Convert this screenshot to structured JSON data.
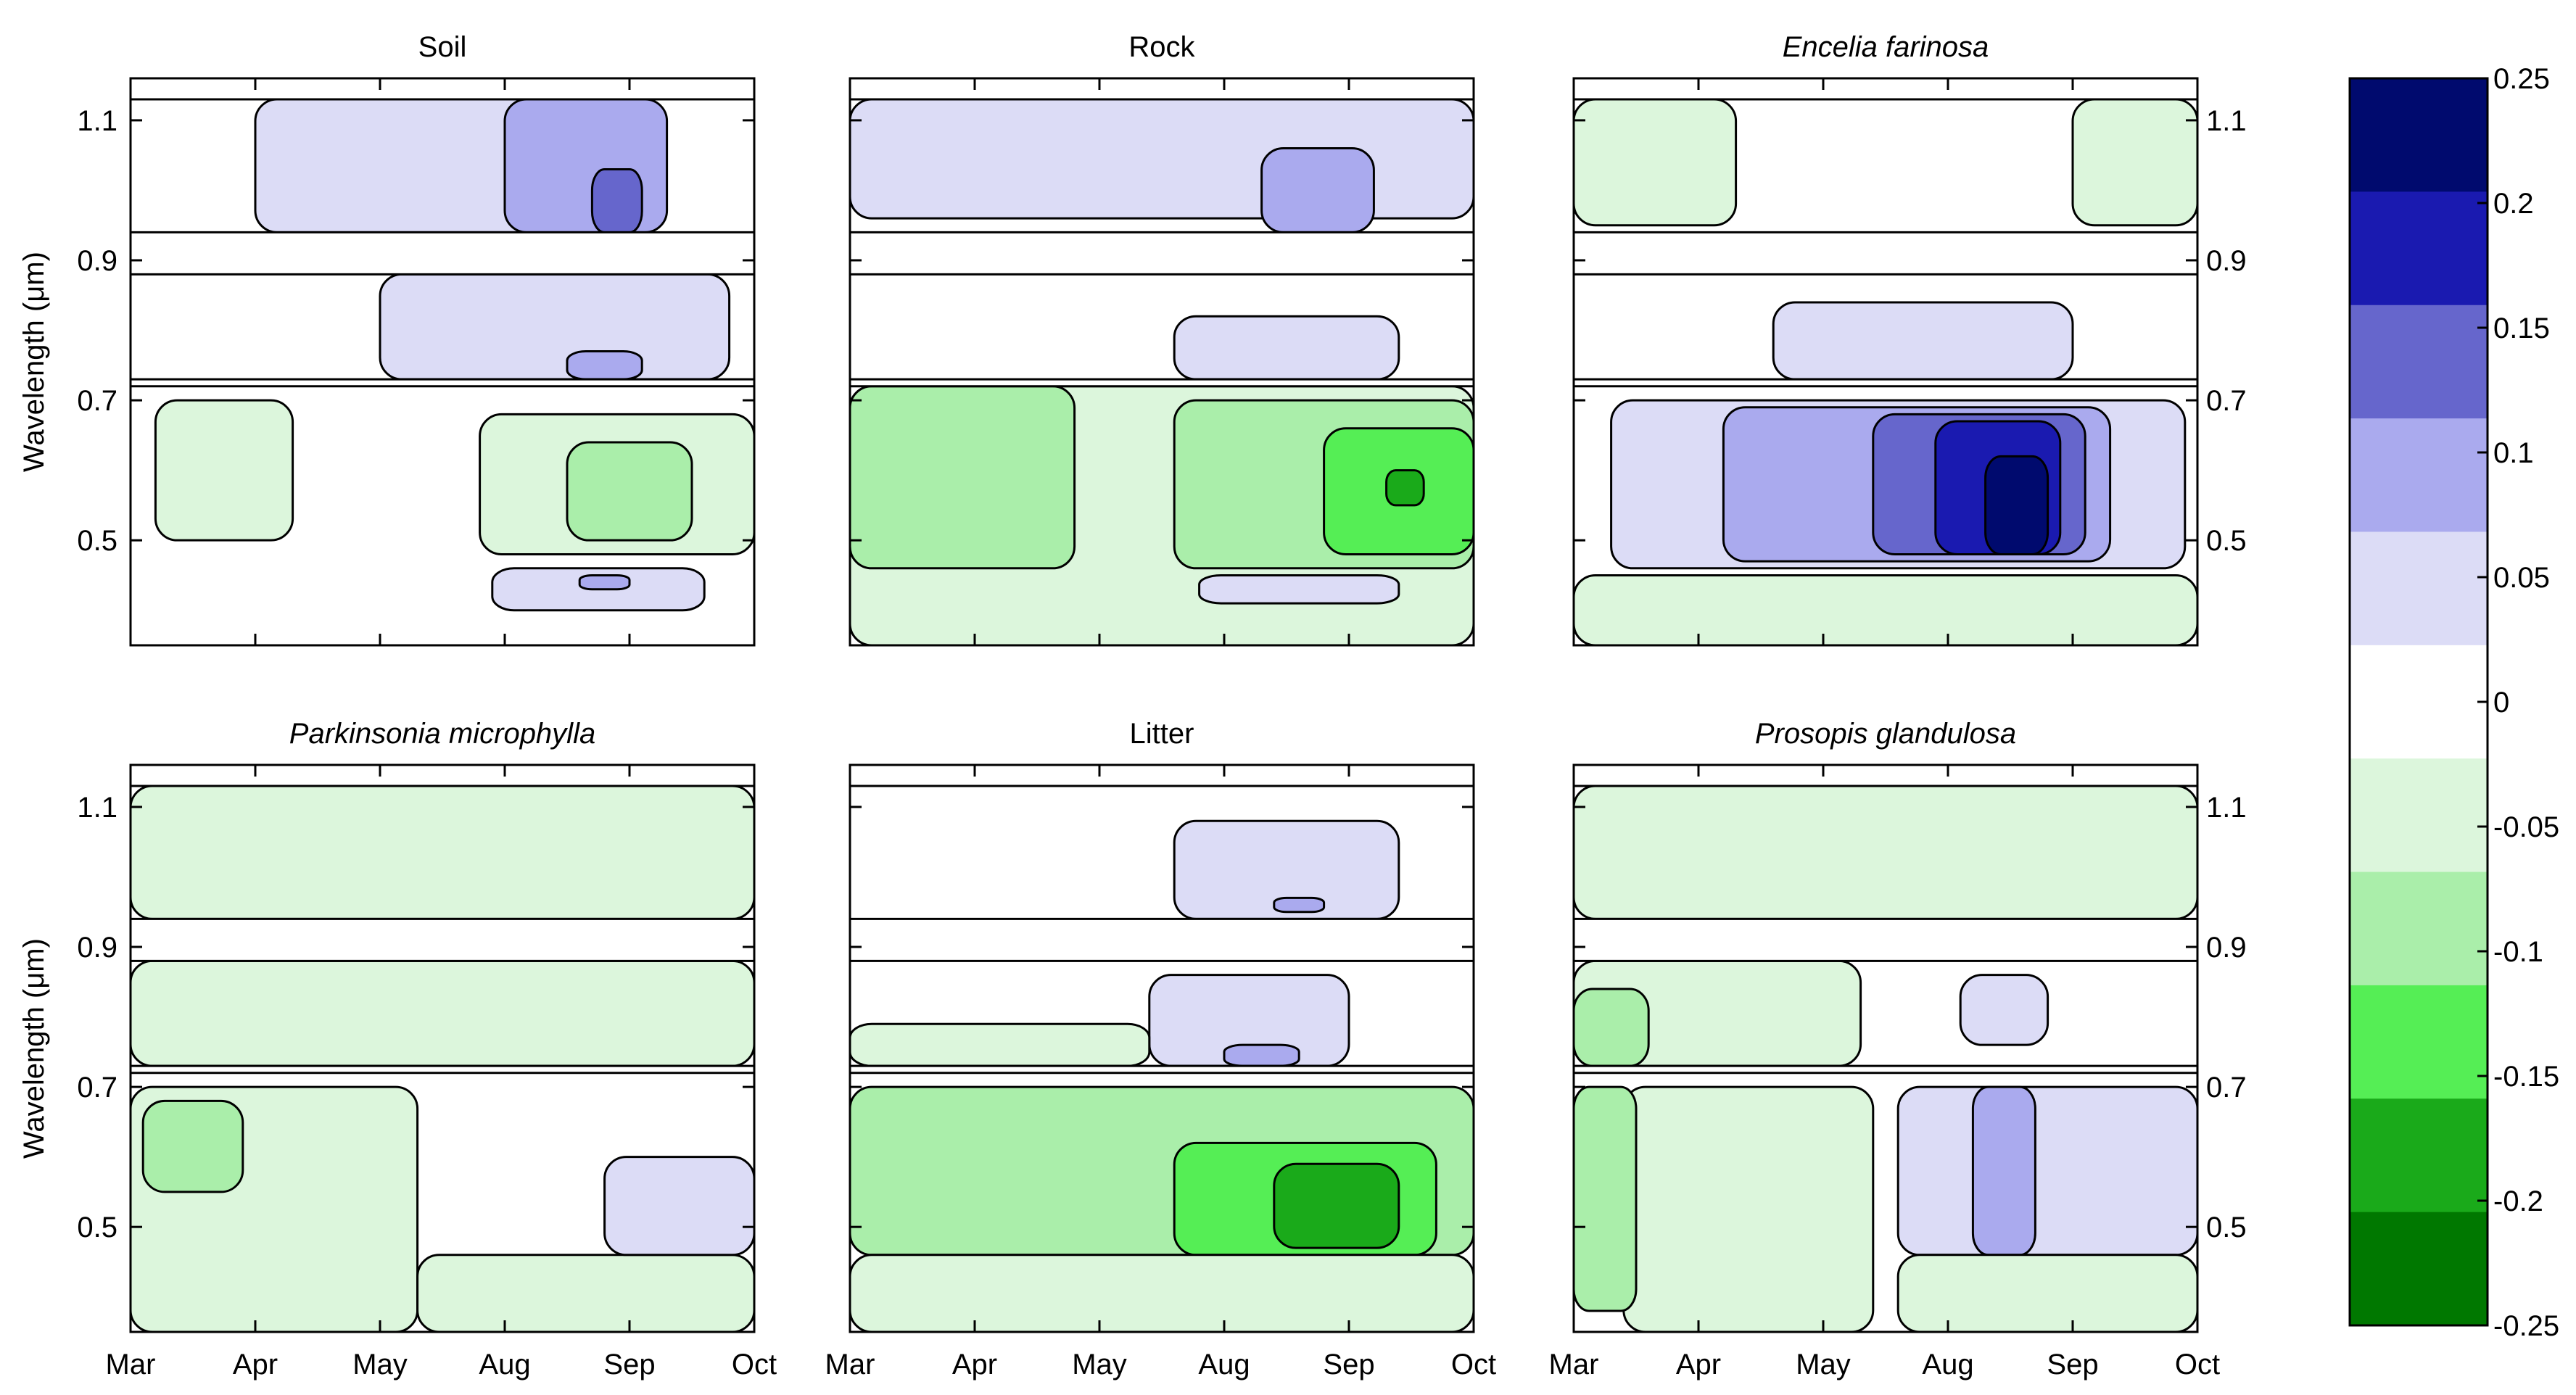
{
  "chart_data": {
    "type": "heatmap",
    "figure": "Seasonal change in reflectance by wavelength for six surface types",
    "ylabel": "Wavelength (μm)",
    "x_tick_labels": [
      "Mar",
      "Apr",
      "May",
      "Aug",
      "Sep",
      "Oct"
    ],
    "y_ticks": [
      0.5,
      0.7,
      0.9,
      1.1
    ],
    "y_tick_labels": [
      "0.5",
      "0.7",
      "0.9",
      "1.1"
    ],
    "ylim": [
      0.35,
      1.16
    ],
    "gaps_um": [
      [
        0.88,
        0.94
      ],
      [
        0.72,
        0.73
      ]
    ],
    "colorbar": {
      "levels": [
        0.25,
        0.2,
        0.15,
        0.1,
        0.05,
        0,
        -0.05,
        -0.1,
        -0.15,
        -0.2,
        -0.25
      ],
      "level_labels": [
        "0.25",
        "0.2",
        "0.15",
        "0.1",
        "0.05",
        "0",
        "-0.05",
        "-0.1",
        "-0.15",
        "-0.2",
        "-0.25"
      ],
      "colors": [
        "#000a6e",
        "#1a1ab0",
        "#6666cc",
        "#aaaaee",
        "#dcdcf6",
        "#ffffff",
        "#dcf6dc",
        "#aaeeaa",
        "#55ee55",
        "#1aaa1a",
        "#007800"
      ]
    },
    "panels": [
      {
        "title": "Soil",
        "italic": false,
        "regions": [
          {
            "value": 0.05,
            "x": [
              1.0,
              4.0
            ],
            "y": [
              0.94,
              1.13
            ]
          },
          {
            "value": 0.1,
            "x": [
              3.0,
              4.3
            ],
            "y": [
              0.94,
              1.13
            ]
          },
          {
            "value": 0.15,
            "x": [
              3.7,
              4.1
            ],
            "y": [
              0.94,
              1.03
            ]
          },
          {
            "value": 0.05,
            "x": [
              2.0,
              4.8
            ],
            "y": [
              0.73,
              0.88
            ]
          },
          {
            "value": 0.1,
            "x": [
              3.5,
              4.1
            ],
            "y": [
              0.73,
              0.77
            ]
          },
          {
            "value": -0.05,
            "x": [
              0.2,
              1.3
            ],
            "y": [
              0.5,
              0.7
            ]
          },
          {
            "value": -0.05,
            "x": [
              2.8,
              5.0
            ],
            "y": [
              0.48,
              0.68
            ]
          },
          {
            "value": -0.1,
            "x": [
              3.5,
              4.5
            ],
            "y": [
              0.5,
              0.64
            ]
          },
          {
            "value": 0.05,
            "x": [
              2.9,
              4.6
            ],
            "y": [
              0.4,
              0.46
            ]
          },
          {
            "value": 0.1,
            "x": [
              3.6,
              4.0
            ],
            "y": [
              0.43,
              0.45
            ]
          }
        ]
      },
      {
        "title": "Rock",
        "italic": false,
        "regions": [
          {
            "value": 0.05,
            "x": [
              0.0,
              5.0
            ],
            "y": [
              0.96,
              1.13
            ]
          },
          {
            "value": 0.1,
            "x": [
              3.3,
              4.2
            ],
            "y": [
              0.94,
              1.06
            ]
          },
          {
            "value": 0.05,
            "x": [
              2.6,
              4.4
            ],
            "y": [
              0.73,
              0.82
            ]
          },
          {
            "value": -0.05,
            "x": [
              0.0,
              5.0
            ],
            "y": [
              0.35,
              0.72
            ]
          },
          {
            "value": -0.1,
            "x": [
              0.0,
              1.8
            ],
            "y": [
              0.46,
              0.72
            ]
          },
          {
            "value": -0.1,
            "x": [
              2.6,
              5.0
            ],
            "y": [
              0.46,
              0.7
            ]
          },
          {
            "value": -0.15,
            "x": [
              3.8,
              5.0
            ],
            "y": [
              0.48,
              0.66
            ]
          },
          {
            "value": -0.2,
            "x": [
              4.3,
              4.6
            ],
            "y": [
              0.55,
              0.6
            ]
          },
          {
            "value": 0.05,
            "x": [
              2.8,
              4.4
            ],
            "y": [
              0.41,
              0.45
            ]
          }
        ]
      },
      {
        "title": "Encelia farinosa",
        "italic": true,
        "regions": [
          {
            "value": -0.05,
            "x": [
              0.0,
              1.3
            ],
            "y": [
              0.95,
              1.13
            ]
          },
          {
            "value": -0.05,
            "x": [
              4.0,
              5.0
            ],
            "y": [
              0.95,
              1.13
            ]
          },
          {
            "value": 0.05,
            "x": [
              1.6,
              4.0
            ],
            "y": [
              0.73,
              0.84
            ]
          },
          {
            "value": 0.05,
            "x": [
              0.3,
              4.9
            ],
            "y": [
              0.46,
              0.7
            ]
          },
          {
            "value": 0.1,
            "x": [
              1.2,
              4.3
            ],
            "y": [
              0.47,
              0.69
            ]
          },
          {
            "value": 0.15,
            "x": [
              2.4,
              4.1
            ],
            "y": [
              0.48,
              0.68
            ]
          },
          {
            "value": 0.2,
            "x": [
              2.9,
              3.9
            ],
            "y": [
              0.48,
              0.67
            ]
          },
          {
            "value": 0.25,
            "x": [
              3.3,
              3.8
            ],
            "y": [
              0.48,
              0.62
            ]
          },
          {
            "value": -0.05,
            "x": [
              0.0,
              5.0
            ],
            "y": [
              0.35,
              0.45
            ]
          }
        ]
      },
      {
        "title": "Parkinsonia microphylla",
        "italic": true,
        "regions": [
          {
            "value": -0.05,
            "x": [
              0.0,
              5.0
            ],
            "y": [
              0.94,
              1.13
            ]
          },
          {
            "value": -0.05,
            "x": [
              0.0,
              5.0
            ],
            "y": [
              0.73,
              0.88
            ]
          },
          {
            "value": -0.05,
            "x": [
              0.0,
              2.3
            ],
            "y": [
              0.35,
              0.7
            ]
          },
          {
            "value": -0.1,
            "x": [
              0.1,
              0.9
            ],
            "y": [
              0.55,
              0.68
            ]
          },
          {
            "value": -0.05,
            "x": [
              2.3,
              5.0
            ],
            "y": [
              0.35,
              0.46
            ]
          },
          {
            "value": 0.05,
            "x": [
              3.8,
              5.0
            ],
            "y": [
              0.46,
              0.6
            ]
          }
        ]
      },
      {
        "title": "Litter",
        "italic": false,
        "regions": [
          {
            "value": 0.05,
            "x": [
              2.6,
              4.4
            ],
            "y": [
              0.94,
              1.08
            ]
          },
          {
            "value": 0.1,
            "x": [
              3.4,
              3.8
            ],
            "y": [
              0.95,
              0.97
            ]
          },
          {
            "value": 0.05,
            "x": [
              2.4,
              4.0
            ],
            "y": [
              0.73,
              0.86
            ]
          },
          {
            "value": 0.1,
            "x": [
              3.0,
              3.6
            ],
            "y": [
              0.73,
              0.76
            ]
          },
          {
            "value": -0.05,
            "x": [
              0.0,
              2.4
            ],
            "y": [
              0.73,
              0.79
            ]
          },
          {
            "value": -0.1,
            "x": [
              0.0,
              5.0
            ],
            "y": [
              0.46,
              0.7
            ]
          },
          {
            "value": -0.15,
            "x": [
              2.6,
              4.7
            ],
            "y": [
              0.46,
              0.62
            ]
          },
          {
            "value": -0.2,
            "x": [
              3.4,
              4.4
            ],
            "y": [
              0.47,
              0.59
            ]
          },
          {
            "value": -0.05,
            "x": [
              0.0,
              5.0
            ],
            "y": [
              0.35,
              0.46
            ]
          }
        ]
      },
      {
        "title": "Prosopis glandulosa",
        "italic": true,
        "regions": [
          {
            "value": -0.05,
            "x": [
              0.0,
              5.0
            ],
            "y": [
              0.94,
              1.13
            ]
          },
          {
            "value": -0.05,
            "x": [
              0.0,
              2.3
            ],
            "y": [
              0.73,
              0.88
            ]
          },
          {
            "value": -0.1,
            "x": [
              0.0,
              0.6
            ],
            "y": [
              0.73,
              0.84
            ]
          },
          {
            "value": 0.05,
            "x": [
              3.1,
              3.8
            ],
            "y": [
              0.76,
              0.86
            ]
          },
          {
            "value": -0.05,
            "x": [
              0.4,
              2.4
            ],
            "y": [
              0.35,
              0.7
            ]
          },
          {
            "value": -0.1,
            "x": [
              0.0,
              0.5
            ],
            "y": [
              0.38,
              0.7
            ]
          },
          {
            "value": 0.05,
            "x": [
              2.6,
              5.0
            ],
            "y": [
              0.46,
              0.7
            ]
          },
          {
            "value": 0.1,
            "x": [
              3.2,
              3.7
            ],
            "y": [
              0.46,
              0.7
            ]
          },
          {
            "value": -0.05,
            "x": [
              2.6,
              5.0
            ],
            "y": [
              0.35,
              0.46
            ]
          }
        ]
      }
    ]
  }
}
